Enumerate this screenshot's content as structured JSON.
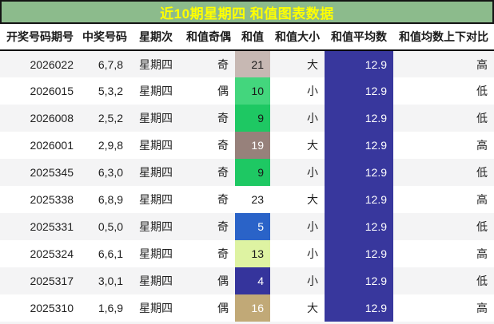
{
  "title": "近10期星期四 和值图表数据",
  "colors": {
    "title_bg": "#8cbb8c",
    "title_fg": "#ffff00",
    "average_bg": "#38379d",
    "average_fg": "#ffffff",
    "stripe": "#f4f4f5"
  },
  "columns": [
    {
      "key": "issue",
      "label": "开奖号码期号"
    },
    {
      "key": "numbers",
      "label": "中奖号码"
    },
    {
      "key": "weekday",
      "label": "星期次"
    },
    {
      "key": "parity",
      "label": "和值奇偶"
    },
    {
      "key": "sum",
      "label": "和值"
    },
    {
      "key": "size",
      "label": "和值大小"
    },
    {
      "key": "average",
      "label": "和值平均数"
    },
    {
      "key": "vs_avg",
      "label": "和值均数上下对比"
    }
  ],
  "rows": [
    {
      "issue": "2026022",
      "numbers": "6,7,8",
      "weekday": "星期四",
      "parity": "奇",
      "sum": "21",
      "sum_bg": "#c7b8b3",
      "sum_fg": "#1a1a1a",
      "size": "大",
      "average": "12.9",
      "vs_avg": "高"
    },
    {
      "issue": "2026015",
      "numbers": "5,3,2",
      "weekday": "星期四",
      "parity": "偶",
      "sum": "10",
      "sum_bg": "#43d67d",
      "sum_fg": "#1a1a1a",
      "size": "小",
      "average": "12.9",
      "vs_avg": "低"
    },
    {
      "issue": "2026008",
      "numbers": "2,5,2",
      "weekday": "星期四",
      "parity": "奇",
      "sum": "9",
      "sum_bg": "#1ec863",
      "sum_fg": "#1a1a1a",
      "size": "小",
      "average": "12.9",
      "vs_avg": "低"
    },
    {
      "issue": "2026001",
      "numbers": "2,9,8",
      "weekday": "星期四",
      "parity": "奇",
      "sum": "19",
      "sum_bg": "#97817b",
      "sum_fg": "#ffffff",
      "size": "大",
      "average": "12.9",
      "vs_avg": "高"
    },
    {
      "issue": "2025345",
      "numbers": "6,3,0",
      "weekday": "星期四",
      "parity": "奇",
      "sum": "9",
      "sum_bg": "#1ec863",
      "sum_fg": "#1a1a1a",
      "size": "小",
      "average": "12.9",
      "vs_avg": "低"
    },
    {
      "issue": "2025338",
      "numbers": "6,8,9",
      "weekday": "星期四",
      "parity": "奇",
      "sum": "23",
      "sum_bg": "",
      "sum_fg": "#1a1a1a",
      "size": "大",
      "average": "12.9",
      "vs_avg": "高"
    },
    {
      "issue": "2025331",
      "numbers": "0,5,0",
      "weekday": "星期四",
      "parity": "奇",
      "sum": "5",
      "sum_bg": "#2a63c8",
      "sum_fg": "#ffffff",
      "size": "小",
      "average": "12.9",
      "vs_avg": "低"
    },
    {
      "issue": "2025324",
      "numbers": "6,6,1",
      "weekday": "星期四",
      "parity": "奇",
      "sum": "13",
      "sum_bg": "#def3a2",
      "sum_fg": "#1a1a1a",
      "size": "小",
      "average": "12.9",
      "vs_avg": "高"
    },
    {
      "issue": "2025317",
      "numbers": "3,0,1",
      "weekday": "星期四",
      "parity": "偶",
      "sum": "4",
      "sum_bg": "#35349c",
      "sum_fg": "#ffffff",
      "size": "小",
      "average": "12.9",
      "vs_avg": "低"
    },
    {
      "issue": "2025310",
      "numbers": "1,6,9",
      "weekday": "星期四",
      "parity": "偶",
      "sum": "16",
      "sum_bg": "#c1a977",
      "sum_fg": "#ffffff",
      "size": "大",
      "average": "12.9",
      "vs_avg": "高"
    }
  ],
  "chart_data": {
    "type": "table",
    "title": "近10期星期四 和值图表数据",
    "columns": [
      "开奖号码期号",
      "中奖号码",
      "星期次",
      "和值奇偶",
      "和值",
      "和值大小",
      "和值平均数",
      "和值均数上下对比"
    ],
    "rows": [
      [
        "2026022",
        "6,7,8",
        "星期四",
        "奇",
        "21",
        "大",
        "12.9",
        "高"
      ],
      [
        "2026015",
        "5,3,2",
        "星期四",
        "偶",
        "10",
        "小",
        "12.9",
        "低"
      ],
      [
        "2026008",
        "2,5,2",
        "星期四",
        "奇",
        "9",
        "小",
        "12.9",
        "低"
      ],
      [
        "2026001",
        "2,9,8",
        "星期四",
        "奇",
        "19",
        "大",
        "12.9",
        "高"
      ],
      [
        "2025345",
        "6,3,0",
        "星期四",
        "奇",
        "9",
        "小",
        "12.9",
        "低"
      ],
      [
        "2025338",
        "6,8,9",
        "星期四",
        "奇",
        "23",
        "大",
        "12.9",
        "高"
      ],
      [
        "2025331",
        "0,5,0",
        "星期四",
        "奇",
        "5",
        "小",
        "12.9",
        "低"
      ],
      [
        "2025324",
        "6,6,1",
        "星期四",
        "奇",
        "13",
        "小",
        "12.9",
        "高"
      ],
      [
        "2025317",
        "3,0,1",
        "星期四",
        "偶",
        "4",
        "小",
        "12.9",
        "低"
      ],
      [
        "2025310",
        "1,6,9",
        "星期四",
        "偶",
        "16",
        "大",
        "12.9",
        "高"
      ]
    ]
  }
}
